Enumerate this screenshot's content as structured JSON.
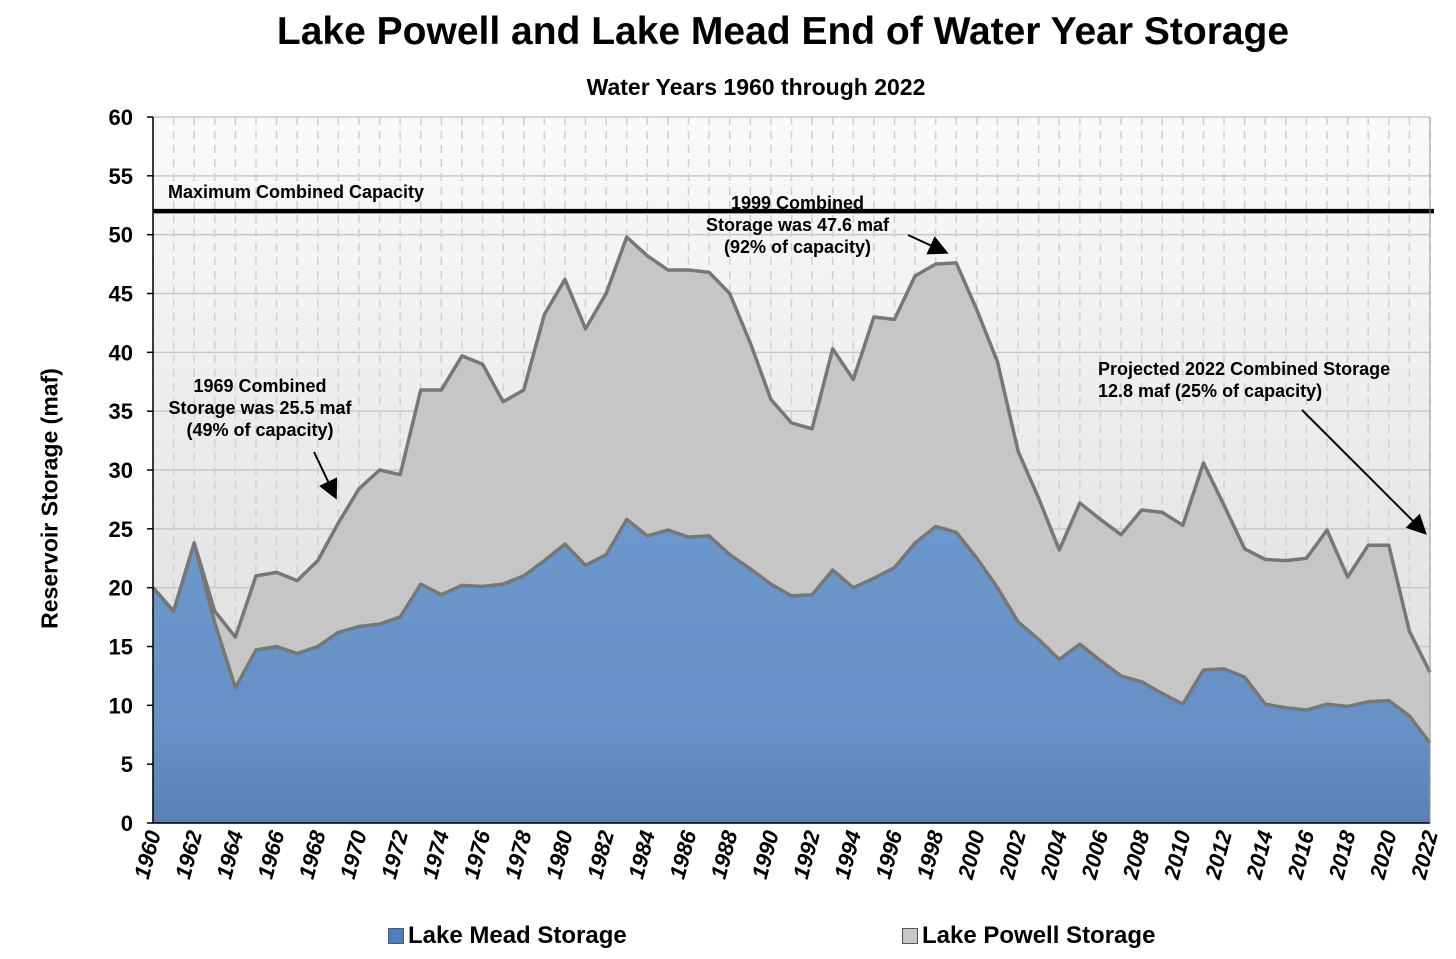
{
  "chart_data": {
    "type": "area",
    "stacked": true,
    "title": "Lake Powell and Lake Mead End of Water Year Storage",
    "subtitle": "Water Years 1960 through 2022",
    "xlabel": "",
    "ylabel": "Reservoir Storage (maf)",
    "ylim": [
      0,
      60
    ],
    "yticks": [
      0,
      5,
      10,
      15,
      20,
      25,
      30,
      35,
      40,
      45,
      50,
      55,
      60
    ],
    "x": [
      1960,
      1961,
      1962,
      1963,
      1964,
      1965,
      1966,
      1967,
      1968,
      1969,
      1970,
      1971,
      1972,
      1973,
      1974,
      1975,
      1976,
      1977,
      1978,
      1979,
      1980,
      1981,
      1982,
      1983,
      1984,
      1985,
      1986,
      1987,
      1988,
      1989,
      1990,
      1991,
      1992,
      1993,
      1994,
      1995,
      1996,
      1997,
      1998,
      1999,
      2000,
      2001,
      2002,
      2003,
      2004,
      2005,
      2006,
      2007,
      2008,
      2009,
      2010,
      2011,
      2012,
      2013,
      2014,
      2015,
      2016,
      2017,
      2018,
      2019,
      2020,
      2021,
      2022
    ],
    "xticks": [
      "1960",
      "1962",
      "1964",
      "1966",
      "1968",
      "1970",
      "1972",
      "1974",
      "1976",
      "1978",
      "1980",
      "1982",
      "1984",
      "1986",
      "1988",
      "1990",
      "1992",
      "1994",
      "1996",
      "1998",
      "2000",
      "2002",
      "2004",
      "2006",
      "2008",
      "2010",
      "2012",
      "2014",
      "2016",
      "2018",
      "2020",
      "2022"
    ],
    "series": [
      {
        "name": "Lake Mead Storage",
        "color": "#6a96c9",
        "values": [
          20,
          18,
          23.8,
          17,
          11.5,
          14.7,
          15,
          14.4,
          15,
          16.2,
          16.7,
          16.9,
          17.5,
          20.3,
          19.4,
          20.2,
          20.1,
          20.3,
          21,
          22.3,
          23.7,
          21.9,
          22.8,
          25.8,
          24.4,
          24.9,
          24.3,
          24.4,
          22.8,
          21.6,
          20.3,
          19.3,
          19.4,
          21.5,
          20,
          20.8,
          21.7,
          23.8,
          25.2,
          24.7,
          22.5,
          20,
          17.1,
          15.6,
          13.9,
          15.2,
          13.8,
          12.5,
          12,
          11,
          10.1,
          13,
          13.1,
          12.4,
          10.1,
          9.8,
          9.6,
          10.1,
          9.9,
          10.3,
          10.4,
          9.1,
          6.8
        ]
      },
      {
        "name": "Lake Powell Storage",
        "color": "#c6c6c6",
        "values": [
          0,
          0,
          0,
          1,
          4.3,
          6.3,
          6.3,
          6.2,
          7.3,
          9.3,
          11.7,
          13.1,
          12.1,
          16.5,
          17.4,
          19.5,
          18.9,
          15.5,
          15.8,
          20.9,
          22.5,
          20.1,
          22.2,
          24,
          23.8,
          22.1,
          22.7,
          22.4,
          22.2,
          19.2,
          15.7,
          14.7,
          14.1,
          18.8,
          17.7,
          22.2,
          21.1,
          22.7,
          22.3,
          22.9,
          21.1,
          19.2,
          14.5,
          12,
          9.3,
          12,
          12,
          12,
          14.6,
          15.4,
          15.2,
          17.6,
          13.9,
          10.9,
          12.3,
          12.5,
          12.9,
          14.8,
          11,
          13.3,
          13.2,
          7.2,
          6
        ]
      },
      {
        "name": "Combined Storage",
        "values": [
          20,
          18,
          23.8,
          18,
          15.8,
          21,
          21.3,
          20.6,
          22.3,
          25.5,
          28.4,
          30,
          29.6,
          36.8,
          36.8,
          39.7,
          39,
          35.8,
          36.8,
          43.2,
          46.2,
          42,
          45,
          49.8,
          48.2,
          47,
          47,
          46.8,
          45,
          40.8,
          36,
          34,
          33.5,
          40.3,
          37.7,
          43,
          42.8,
          46.5,
          47.5,
          47.6,
          43.6,
          39.2,
          31.6,
          27.6,
          23.2,
          27.2,
          25.8,
          24.5,
          26.6,
          26.4,
          25.3,
          30.6,
          27,
          23.3,
          22.4,
          22.3,
          22.5,
          24.9,
          20.9,
          23.6,
          23.6,
          16.3,
          12.8
        ]
      }
    ],
    "reference_line": {
      "label": "Maximum Combined Capacity",
      "value": 52
    },
    "annotations": [
      {
        "text_lines": [
          "1969 Combined",
          "Storage was 25.5 maf",
          "(49% of capacity)"
        ],
        "x": 1969,
        "y": 25.5
      },
      {
        "text_lines": [
          "1999 Combined",
          "Storage was 47.6 maf",
          "(92% of capacity)"
        ],
        "x": 1999,
        "y": 47.6
      },
      {
        "text_lines": [
          "Projected 2022 Combined Storage",
          "12.8 maf (25% of capacity)"
        ],
        "x": 2022,
        "y": 12.8
      }
    ],
    "legend": {
      "position": "bottom",
      "entries": [
        "Lake Mead Storage",
        "Lake Powell Storage"
      ]
    },
    "grid": true
  }
}
